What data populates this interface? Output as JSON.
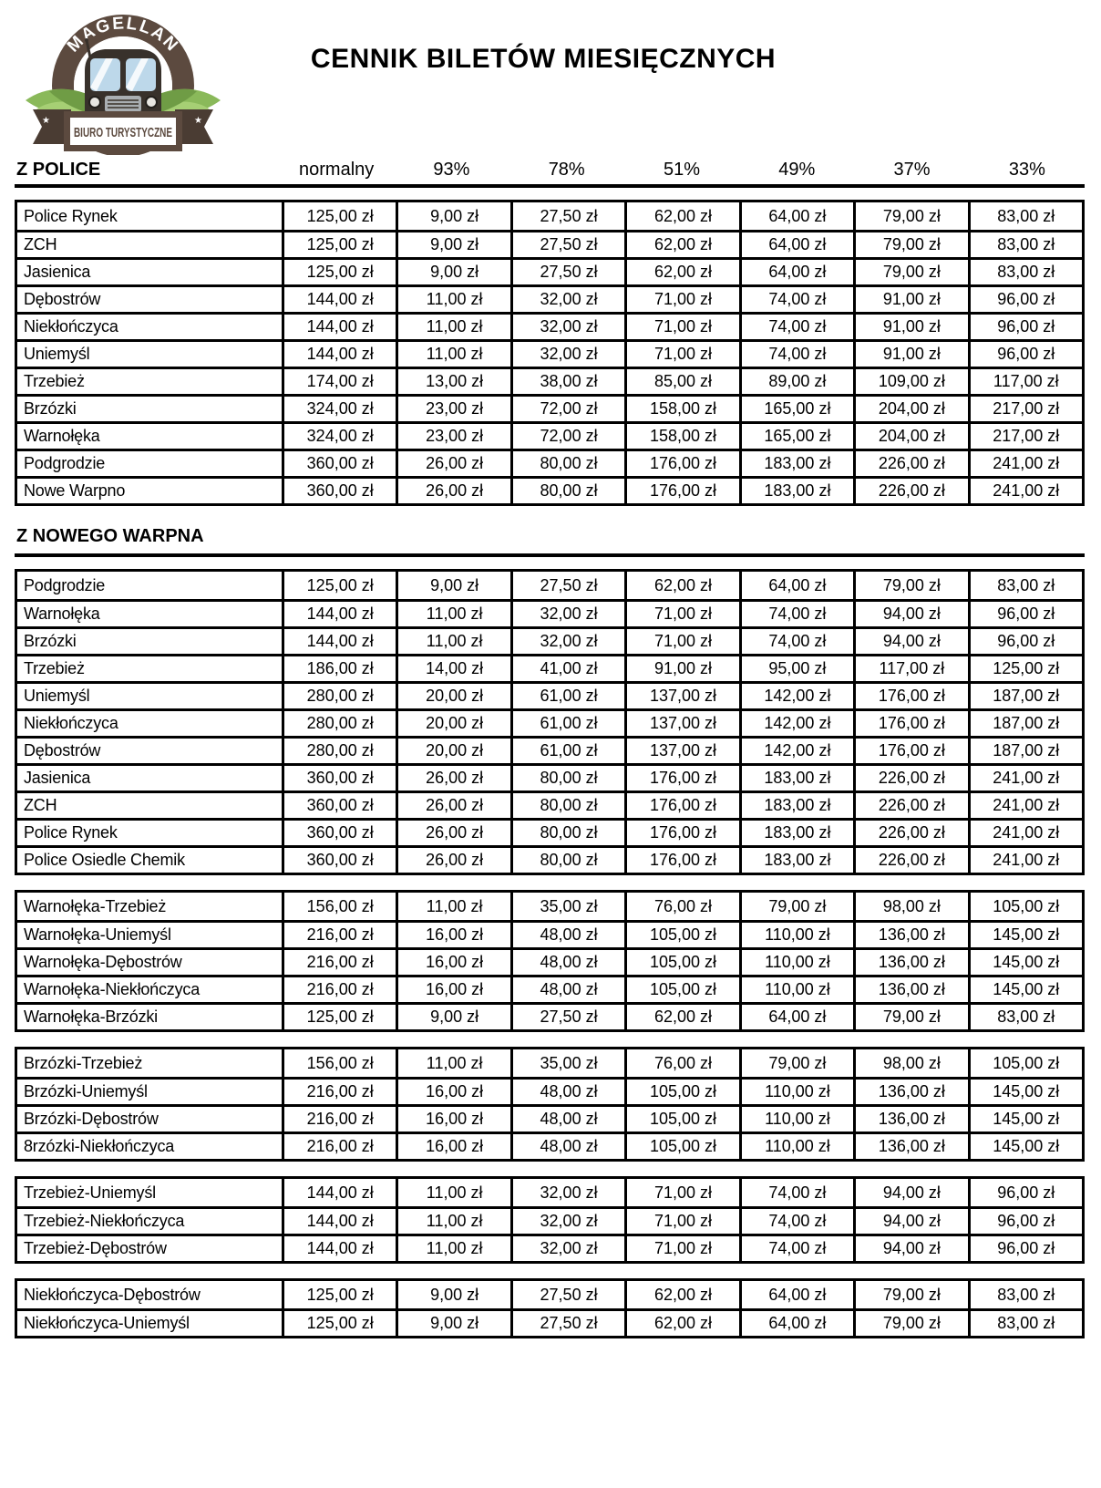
{
  "logo": {
    "brand": "MAGELLAN",
    "banner": "BIURO TURYSTYCZNE",
    "colors": {
      "ring_brown": "#5c4a3f",
      "fold_brown": "#4a3c33",
      "leaf_light": "#a6cf74",
      "leaf_mid": "#8ab95a",
      "leaf_dark": "#6f9c45",
      "dirt_brown": "#7c5233",
      "dirt_dark": "#5e3b22",
      "bus_dark": "#38312b",
      "window_blue": "#bdd8ea",
      "metal_gray": "#a9aeb1"
    }
  },
  "title": "CENNIK BILETÓW MIESIĘCZNYCH",
  "column_header": {
    "section_label": "Z POLICE",
    "columns": [
      "normalny",
      "93%",
      "78%",
      "51%",
      "49%",
      "37%",
      "33%"
    ]
  },
  "section2_label": "Z NOWEGO WARPNA",
  "tables": [
    {
      "id": "z-police",
      "rows": [
        {
          "name": "Police Rynek",
          "prices": [
            "125,00 zł",
            "9,00 zł",
            "27,50 zł",
            "62,00 zł",
            "64,00 zł",
            "79,00 zł",
            "83,00 zł"
          ]
        },
        {
          "name": "ZCH",
          "prices": [
            "125,00 zł",
            "9,00 zł",
            "27,50 zł",
            "62,00 zł",
            "64,00 zł",
            "79,00 zł",
            "83,00 zł"
          ]
        },
        {
          "name": "Jasienica",
          "prices": [
            "125,00 zł",
            "9,00 zł",
            "27,50 zł",
            "62,00 zł",
            "64,00 zł",
            "79,00 zł",
            "83,00 zł"
          ]
        },
        {
          "name": "Dębostrów",
          "prices": [
            "144,00 zł",
            "11,00 zł",
            "32,00 zł",
            "71,00 zł",
            "74,00 zł",
            "91,00 zł",
            "96,00 zł"
          ]
        },
        {
          "name": "Niekłończyca",
          "prices": [
            "144,00 zł",
            "11,00 zł",
            "32,00 zł",
            "71,00 zł",
            "74,00 zł",
            "91,00 zł",
            "96,00 zł"
          ]
        },
        {
          "name": "Uniemyśl",
          "prices": [
            "144,00 zł",
            "11,00 zł",
            "32,00 zł",
            "71,00 zł",
            "74,00 zł",
            "91,00 zł",
            "96,00 zł"
          ]
        },
        {
          "name": "Trzebież",
          "prices": [
            "174,00 zł",
            "13,00 zł",
            "38,00 zł",
            "85,00 zł",
            "89,00 zł",
            "109,00 zł",
            "117,00 zł"
          ]
        },
        {
          "name": "Brzózki",
          "prices": [
            "324,00 zł",
            "23,00 zł",
            "72,00 zł",
            "158,00 zł",
            "165,00 zł",
            "204,00 zł",
            "217,00 zł"
          ]
        },
        {
          "name": "Warnołęka",
          "prices": [
            "324,00 zł",
            "23,00 zł",
            "72,00 zł",
            "158,00 zł",
            "165,00 zł",
            "204,00 zł",
            "217,00 zł"
          ]
        },
        {
          "name": "Podgrodzie",
          "prices": [
            "360,00 zł",
            "26,00 zł",
            "80,00 zł",
            "176,00 zł",
            "183,00 zł",
            "226,00 zł",
            "241,00 zł"
          ]
        },
        {
          "name": "Nowe Warpno",
          "prices": [
            "360,00 zł",
            "26,00 zł",
            "80,00 zł",
            "176,00 zł",
            "183,00 zł",
            "226,00 zł",
            "241,00 zł"
          ]
        }
      ]
    },
    {
      "id": "z-nowego-warpna",
      "rows": [
        {
          "name": "Podgrodzie",
          "prices": [
            "125,00 zł",
            "9,00 zł",
            "27,50 zł",
            "62,00 zł",
            "64,00 zł",
            "79,00 zł",
            "83,00 zł"
          ]
        },
        {
          "name": "Warnołęka",
          "prices": [
            "144,00 zł",
            "11,00 zł",
            "32,00 zł",
            "71,00 zł",
            "74,00 zł",
            "94,00 zł",
            "96,00 zł"
          ]
        },
        {
          "name": "Brzózki",
          "prices": [
            "144,00 zł",
            "11,00 zł",
            "32,00 zł",
            "71,00 zł",
            "74,00 zł",
            "94,00 zł",
            "96,00 zł"
          ]
        },
        {
          "name": "Trzebież",
          "prices": [
            "186,00 zł",
            "14,00 zł",
            "41,00 zł",
            "91,00 zł",
            "95,00 zł",
            "117,00 zł",
            "125,00 zł"
          ]
        },
        {
          "name": "Uniemyśl",
          "prices": [
            "280,00 zł",
            "20,00 zł",
            "61,00 zł",
            "137,00 zł",
            "142,00 zł",
            "176,00 zł",
            "187,00 zł"
          ]
        },
        {
          "name": "Niekłończyca",
          "prices": [
            "280,00 zł",
            "20,00 zł",
            "61,00 zł",
            "137,00 zł",
            "142,00 zł",
            "176,00 zł",
            "187,00 zł"
          ]
        },
        {
          "name": "Dębostrów",
          "prices": [
            "280,00 zł",
            "20,00 zł",
            "61,00 zł",
            "137,00 zł",
            "142,00 zł",
            "176,00 zł",
            "187,00 zł"
          ]
        },
        {
          "name": "Jasienica",
          "prices": [
            "360,00 zł",
            "26,00 zł",
            "80,00 zł",
            "176,00 zł",
            "183,00 zł",
            "226,00 zł",
            "241,00 zł"
          ]
        },
        {
          "name": "ZCH",
          "prices": [
            "360,00 zł",
            "26,00 zł",
            "80,00 zł",
            "176,00 zł",
            "183,00 zł",
            "226,00 zł",
            "241,00 zł"
          ]
        },
        {
          "name": "Police Rynek",
          "prices": [
            "360,00 zł",
            "26,00 zł",
            "80,00 zł",
            "176,00 zł",
            "183,00 zł",
            "226,00 zł",
            "241,00 zł"
          ]
        },
        {
          "name": "Police Osiedle Chemik",
          "prices": [
            "360,00 zł",
            "26,00 zł",
            "80,00 zł",
            "176,00 zł",
            "183,00 zł",
            "226,00 zł",
            "241,00 zł"
          ]
        }
      ]
    },
    {
      "id": "warnoleka-relacje",
      "rows": [
        {
          "name": "Warnołęka-Trzebież",
          "prices": [
            "156,00 zł",
            "11,00 zł",
            "35,00 zł",
            "76,00 zł",
            "79,00 zł",
            "98,00 zł",
            "105,00 zł"
          ]
        },
        {
          "name": "Warnołęka-Uniemyśl",
          "prices": [
            "216,00 zł",
            "16,00 zł",
            "48,00 zł",
            "105,00 zł",
            "110,00 zł",
            "136,00 zł",
            "145,00 zł"
          ]
        },
        {
          "name": "Warnołęka-Dębostrów",
          "prices": [
            "216,00 zł",
            "16,00 zł",
            "48,00 zł",
            "105,00 zł",
            "110,00 zł",
            "136,00 zł",
            "145,00 zł"
          ]
        },
        {
          "name": "Warnołęka-Niekłończyca",
          "prices": [
            "216,00 zł",
            "16,00 zł",
            "48,00 zł",
            "105,00 zł",
            "110,00 zł",
            "136,00 zł",
            "145,00 zł"
          ]
        },
        {
          "name": "Warnołęka-Brzózki",
          "prices": [
            "125,00 zł",
            "9,00 zł",
            "27,50 zł",
            "62,00 zł",
            "64,00 zł",
            "79,00 zł",
            "83,00 zł"
          ]
        }
      ]
    },
    {
      "id": "brzozki-relacje",
      "rows": [
        {
          "name": "Brzózki-Trzebież",
          "prices": [
            "156,00 zł",
            "11,00 zł",
            "35,00 zł",
            "76,00 zł",
            "79,00 zł",
            "98,00 zł",
            "105,00 zł"
          ]
        },
        {
          "name": "Brzózki-Uniemyśl",
          "prices": [
            "216,00 zł",
            "16,00 zł",
            "48,00 zł",
            "105,00 zł",
            "110,00 zł",
            "136,00 zł",
            "145,00 zł"
          ]
        },
        {
          "name": "Brzózki-Dębostrów",
          "prices": [
            "216,00 zł",
            "16,00 zł",
            "48,00 zł",
            "105,00 zł",
            "110,00 zł",
            "136,00 zł",
            "145,00 zł"
          ]
        },
        {
          "name": "8rzózki-Niekłończyca",
          "prices": [
            "216,00 zł",
            "16,00 zł",
            "48,00 zł",
            "105,00 zł",
            "110,00 zł",
            "136,00 zł",
            "145,00 zł"
          ]
        }
      ]
    },
    {
      "id": "trzebiez-relacje",
      "rows": [
        {
          "name": "Trzebież-Uniemyśl",
          "prices": [
            "144,00 zł",
            "11,00 zł",
            "32,00 zł",
            "71,00 zł",
            "74,00 zł",
            "94,00 zł",
            "96,00 zł"
          ]
        },
        {
          "name": "Trzebież-Niekłończyca",
          "prices": [
            "144,00 zł",
            "11,00 zł",
            "32,00 zł",
            "71,00 zł",
            "74,00 zł",
            "94,00 zł",
            "96,00 zł"
          ]
        },
        {
          "name": "Trzebież-Dębostrów",
          "prices": [
            "144,00 zł",
            "11,00 zł",
            "32,00 zł",
            "71,00 zł",
            "74,00 zł",
            "94,00 zł",
            "96,00 zł"
          ]
        }
      ]
    },
    {
      "id": "nieklonczyca-relacje",
      "rows": [
        {
          "name": "Niekłończyca-Dębostrów",
          "prices": [
            "125,00 zł",
            "9,00 zł",
            "27,50 zł",
            "62,00 zł",
            "64,00 zł",
            "79,00 zł",
            "83,00 zł"
          ]
        },
        {
          "name": "Niekłończyca-Uniemyśl",
          "prices": [
            "125,00 zł",
            "9,00 zł",
            "27,50 zł",
            "62,00 zł",
            "64,00 zł",
            "79,00 zł",
            "83,00 zł"
          ]
        }
      ]
    }
  ]
}
